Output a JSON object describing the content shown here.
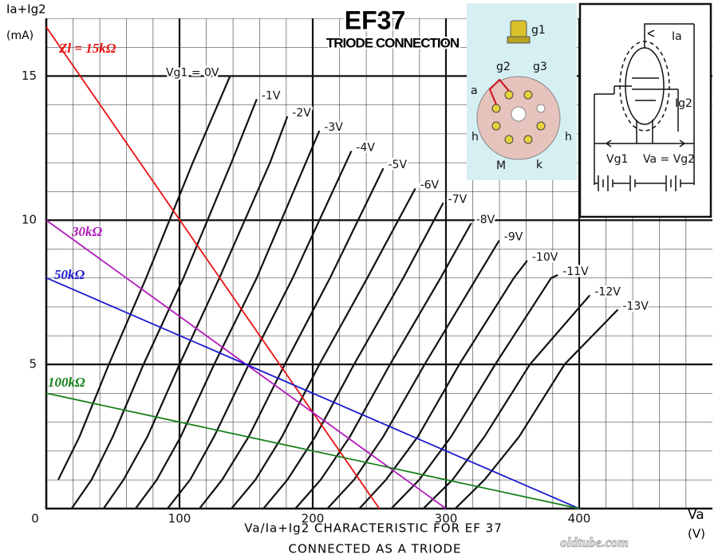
{
  "chart_data": {
    "type": "line",
    "title": "EF37",
    "subtitle": "TRIODE CONNECTION",
    "y_label": "Ia+Ig2",
    "y_unit": "(mA)",
    "x_label": "Va",
    "x_unit": "(V)",
    "caption": [
      "Va/Ia+Ig2 CHARACTERISTIC FOR EF 37",
      "CONNECTED AS A TRIODE"
    ],
    "watermark": "oldtube.com",
    "xlim": [
      0,
      500
    ],
    "ylim": [
      0,
      17
    ],
    "xticks": [
      0,
      100,
      200,
      300,
      400
    ],
    "yticks": [
      5,
      10,
      15
    ],
    "grid": true,
    "curve_color": "#111111",
    "series": [
      {
        "name": "Vg1 = 0V",
        "x": [
          9,
          25,
          47,
          75,
          110,
          138
        ],
        "values": [
          1,
          2.5,
          5,
          8,
          12,
          15
        ]
      },
      {
        "name": "-1V",
        "x": [
          19,
          34,
          50,
          73,
          103,
          139,
          158
        ],
        "values": [
          0,
          1,
          2.5,
          5,
          8,
          12,
          14.2
        ]
      },
      {
        "name": "-2V",
        "x": [
          43,
          58,
          76,
          100,
          130,
          168,
          181
        ],
        "values": [
          0,
          1,
          2.5,
          5,
          8,
          12,
          13.6
        ]
      },
      {
        "name": "-3V",
        "x": [
          67,
          83,
          101,
          126,
          158,
          205
        ],
        "values": [
          0,
          1,
          2.5,
          5,
          8,
          13.1
        ]
      },
      {
        "name": "-4V",
        "x": [
          91,
          108,
          126,
          152,
          185,
          229
        ],
        "values": [
          0,
          1,
          2.5,
          5,
          8,
          12.4
        ]
      },
      {
        "name": "-5V",
        "x": [
          115,
          132,
          152,
          179,
          213,
          253
        ],
        "values": [
          0,
          1,
          2.5,
          5,
          8,
          11.8
        ]
      },
      {
        "name": "-6V",
        "x": [
          139,
          157,
          177,
          205,
          241,
          277
        ],
        "values": [
          0,
          1,
          2.5,
          5,
          8,
          11.1
        ]
      },
      {
        "name": "-7V",
        "x": [
          163,
          181,
          202,
          231,
          268,
          298
        ],
        "values": [
          0,
          1,
          2.5,
          5,
          8,
          10.6
        ]
      },
      {
        "name": "-8V",
        "x": [
          187,
          206,
          228,
          258,
          296,
          319
        ],
        "values": [
          0,
          1,
          2.5,
          5,
          8,
          9.9
        ]
      },
      {
        "name": "-9V",
        "x": [
          211,
          231,
          253,
          284,
          323,
          340
        ],
        "values": [
          0,
          1,
          2.5,
          5,
          8,
          9.3
        ]
      },
      {
        "name": "-10V",
        "x": [
          235,
          255,
          279,
          310,
          351,
          361
        ],
        "values": [
          0,
          1,
          2.5,
          5,
          8,
          8.6
        ]
      },
      {
        "name": "-11V",
        "x": [
          259,
          280,
          304,
          337,
          379,
          384
        ],
        "values": [
          0,
          1,
          2.5,
          5,
          8,
          8.1
        ]
      },
      {
        "name": "-12V",
        "x": [
          283,
          305,
          329,
          363,
          408
        ],
        "values": [
          0,
          1,
          2.5,
          5,
          7.4
        ]
      },
      {
        "name": "-13V",
        "x": [
          307,
          329,
          355,
          389,
          429
        ],
        "values": [
          0,
          1,
          2.5,
          5,
          6.9
        ]
      }
    ],
    "load_lines": [
      {
        "name": "Zl = 15kΩ",
        "color": "#e8110f",
        "x": [
          0,
          250
        ],
        "values": [
          16.7,
          0
        ]
      },
      {
        "name": "30kΩ",
        "color": "#b11ab8",
        "x": [
          0,
          300
        ],
        "values": [
          10,
          0
        ]
      },
      {
        "name": "50kΩ",
        "color": "#1a1ad0",
        "x": [
          0,
          400
        ],
        "values": [
          8,
          0
        ]
      },
      {
        "name": "100kΩ",
        "color": "#17801a",
        "x": [
          0,
          400
        ],
        "values": [
          4,
          0
        ]
      }
    ],
    "pin_labels": [
      "g1",
      "g2",
      "g3",
      "a",
      "h",
      "h",
      "M",
      "k"
    ],
    "schematic_labels": [
      "Ia",
      "Ig2",
      "Vg1",
      "Va = Vg2"
    ]
  }
}
